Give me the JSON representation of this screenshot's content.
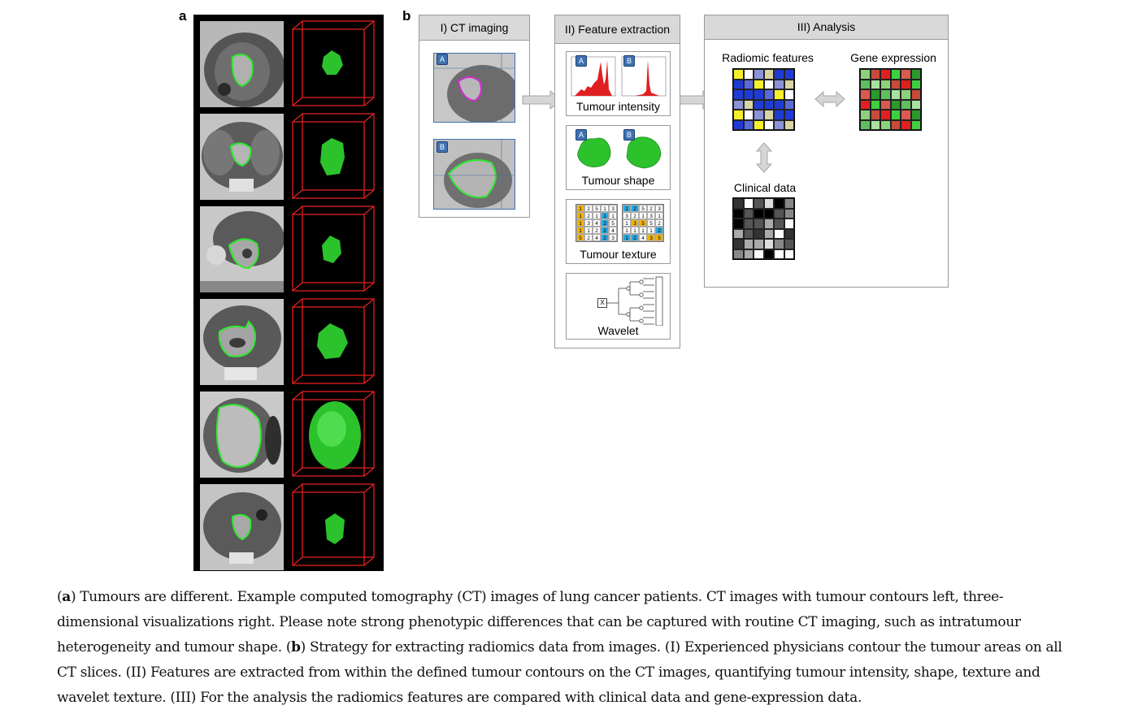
{
  "figure_a": {
    "letter": "a"
  },
  "figure_b": {
    "letter": "b",
    "stage1": {
      "title": "I) CT imaging",
      "tag_a": "A",
      "tag_b": "B"
    },
    "stage2": {
      "title": "II) Feature extraction",
      "intensity_label": "Tumour intensity",
      "shape_label": "Tumour shape",
      "texture_label": "Tumour texture",
      "wavelet_label": "Wavelet",
      "tag_a": "A",
      "tag_b": "B",
      "wavelet_root": "X"
    },
    "stage3": {
      "title": "III) Analysis",
      "radiomic_label": "Radiomic features",
      "gene_label": "Gene expression",
      "clinical_label": "Clinical data"
    },
    "texture_grid_left": [
      [
        "1",
        "2",
        "5",
        "1",
        "3"
      ],
      [
        "1",
        "2",
        "1",
        "1",
        "1"
      ],
      [
        "1",
        "3",
        "4",
        "2",
        "5"
      ],
      [
        "1",
        "1",
        "2",
        "2",
        "4"
      ],
      [
        "5",
        "2",
        "4",
        "2",
        "3"
      ]
    ],
    "texture_grid_right": [
      [
        "1",
        "2",
        "5",
        "2",
        "3"
      ],
      [
        "3",
        "2",
        "1",
        "3",
        "1"
      ],
      [
        "1",
        "3",
        "5",
        "5",
        "2"
      ],
      [
        "1",
        "1",
        "1",
        "1",
        "2"
      ],
      [
        "1",
        "2",
        "4",
        "3",
        "5"
      ]
    ],
    "colors": {
      "stage_header": "#d9d9d9",
      "stage_border": "#9a9a9a",
      "tumour_green": "#2bc22b",
      "contour_green": "#3ddc3d",
      "cube_red": "#e02020",
      "tag_blue": "#3f72b2"
    }
  },
  "caption": {
    "a_label": "a",
    "a_text": "Tumours are different. Example computed tomography (CT) images of lung cancer patients. CT images with tumour contours left, three-dimensional visualizations right. Please note strong phenotypic differences that can be captured with routine CT imaging, such as intratumour heterogeneity and tumour shape. (",
    "b_label": "b",
    "b_text": "Strategy for extracting radiomics data from images. (I) Experienced physicians contour the tumour areas on all CT slices. (II) Features are extracted from within the defined tumour contours on the CT images, quantifying tumour intensity, shape, texture and wavelet texture. (III) For the analysis the radiomics features are compared with clinical data and gene-expression data."
  }
}
